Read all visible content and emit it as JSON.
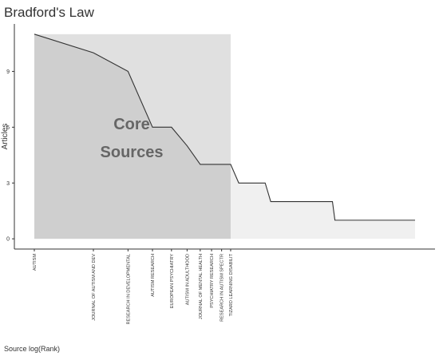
{
  "chart_data": {
    "type": "line",
    "title": "Bradford's Law",
    "x_label": "Source log(Rank)",
    "y_label": "Articles",
    "annotation": [
      "Core",
      "Sources"
    ],
    "x": [
      0,
      0.693,
      1.099,
      1.386,
      1.609,
      1.792,
      1.946,
      2.079,
      2.197,
      2.303,
      2.398,
      2.708,
      2.773,
      3.497,
      3.526,
      4.466
    ],
    "series": [
      {
        "name": "Articles",
        "color": "#333333",
        "values": [
          11,
          10,
          9,
          6,
          6,
          5,
          4,
          4,
          4,
          4,
          3,
          3,
          2,
          2,
          1,
          1
        ]
      }
    ],
    "source_labels": [
      "AUTISM",
      "JOURNAL OF AUTISM AND DEV",
      "RESEARCH IN DEVELOPMENTAL",
      "AUTISM RESEARCH",
      "EUROPEAN PSYCHIATRY",
      "AUTISM IN ADULTHOOD",
      "JOURNAL OF MENTAL HEALTH",
      "PSYCHIATRY RESEARCH",
      "RESEARCH IN AUTISM SPECTR",
      "TIZARD LEARNING DISABILIT"
    ],
    "xlim": [
      -0.234,
      4.7
    ],
    "ylim": [
      -0.55,
      11.55
    ],
    "yticks": [
      0,
      3,
      6,
      9
    ]
  }
}
